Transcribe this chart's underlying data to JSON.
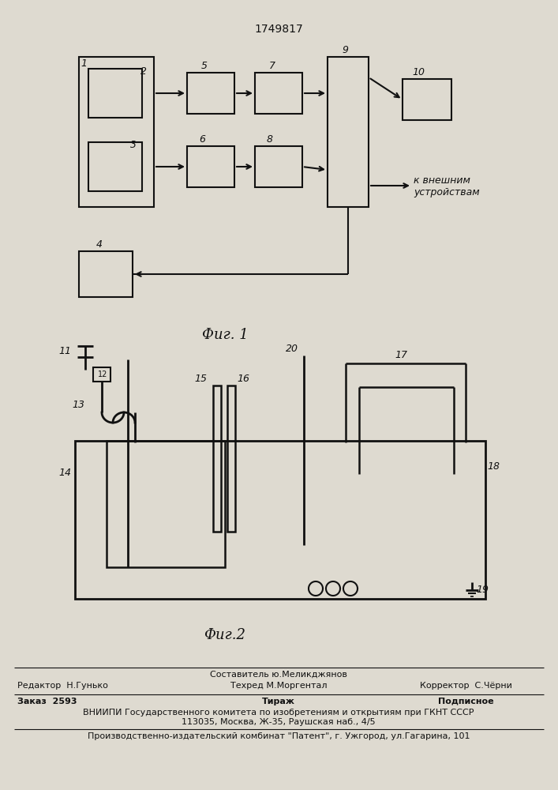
{
  "title": "1749817",
  "fig1_caption": "Фиг. 1",
  "fig2_caption": "Фиг.2",
  "bg_color": "#dedad0",
  "line_color": "#111111"
}
